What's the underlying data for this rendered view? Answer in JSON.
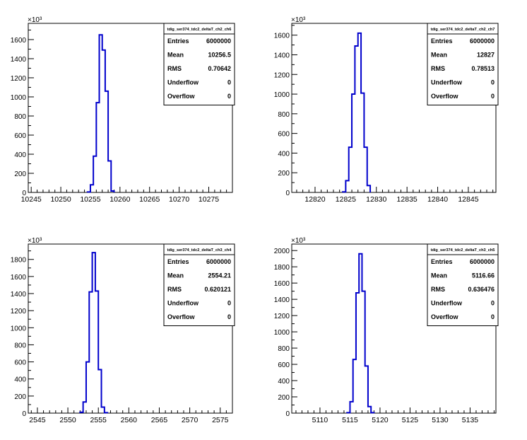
{
  "chart_data": [
    {
      "type": "bar",
      "histogram": true,
      "title": "tdig_ser374_tdc2_deltaT_ch2_ch6",
      "y_exponent_label": "×10³",
      "xlim": [
        10244.5,
        10279
      ],
      "ylim": [
        0,
        1770
      ],
      "xticks": [
        10245,
        10250,
        10255,
        10260,
        10265,
        10270,
        10275
      ],
      "yticks": [
        0,
        200,
        400,
        600,
        800,
        1000,
        1200,
        1400,
        1600
      ],
      "bin_width": 0.5,
      "bins": [
        10254.5,
        10255,
        10255.5,
        10256,
        10256.5,
        10257,
        10257.5,
        10258,
        10258.5
      ],
      "values": [
        5,
        80,
        380,
        940,
        1650,
        1490,
        1060,
        330,
        15
      ],
      "color": "#0000cc",
      "stats": [
        {
          "label": "Entries",
          "value": "6000000"
        },
        {
          "label": "Mean",
          "value": "10256.5"
        },
        {
          "label": "RMS",
          "value": "0.70642"
        },
        {
          "label": "Underflow",
          "value": "0"
        },
        {
          "label": "Overflow",
          "value": "0"
        }
      ]
    },
    {
      "type": "bar",
      "histogram": true,
      "title": "tdig_ser374_tdc2_deltaT_ch2_ch7",
      "y_exponent_label": "×10³",
      "xlim": [
        12816.2,
        12849.5
      ],
      "ylim": [
        0,
        1720
      ],
      "xticks": [
        12820,
        12825,
        12830,
        12835,
        12840,
        12845
      ],
      "yticks": [
        0,
        200,
        400,
        600,
        800,
        1000,
        1200,
        1400,
        1600
      ],
      "bin_width": 0.5,
      "bins": [
        12824.5,
        12825,
        12825.5,
        12826,
        12826.5,
        12827,
        12827.5,
        12828,
        12828.5
      ],
      "values": [
        5,
        120,
        460,
        1000,
        1490,
        1620,
        1010,
        460,
        70
      ],
      "color": "#0000cc",
      "stats": [
        {
          "label": "Entries",
          "value": "6000000"
        },
        {
          "label": "Mean",
          "value": "12827"
        },
        {
          "label": "RMS",
          "value": "0.78513"
        },
        {
          "label": "Underflow",
          "value": "0"
        },
        {
          "label": "Overflow",
          "value": "0"
        }
      ]
    },
    {
      "type": "bar",
      "histogram": true,
      "title": "tdig_ser374_tdc2_deltaT_ch3_ch4",
      "y_exponent_label": "×10³",
      "xlim": [
        2543.5,
        2577
      ],
      "ylim": [
        0,
        1980
      ],
      "xticks": [
        2545,
        2550,
        2555,
        2560,
        2565,
        2570,
        2575
      ],
      "yticks": [
        0,
        200,
        400,
        600,
        800,
        1000,
        1200,
        1400,
        1600,
        1800
      ],
      "bin_width": 0.5,
      "bins": [
        2552,
        2552.5,
        2553,
        2553.5,
        2554,
        2554.5,
        2555,
        2555.5,
        2556
      ],
      "values": [
        10,
        130,
        600,
        1420,
        1880,
        1430,
        510,
        70,
        5
      ],
      "color": "#0000cc",
      "stats": [
        {
          "label": "Entries",
          "value": "6000000"
        },
        {
          "label": "Mean",
          "value": "2554.21"
        },
        {
          "label": "RMS",
          "value": "0.620121"
        },
        {
          "label": "Underflow",
          "value": "0"
        },
        {
          "label": "Overflow",
          "value": "0"
        }
      ]
    },
    {
      "type": "bar",
      "histogram": true,
      "title": "tdig_ser374_tdc2_deltaT_ch3_ch5",
      "y_exponent_label": "×10³",
      "xlim": [
        5105.3,
        5139.3
      ],
      "ylim": [
        0,
        2080
      ],
      "xticks": [
        5110,
        5115,
        5120,
        5125,
        5130,
        5135
      ],
      "yticks": [
        0,
        200,
        400,
        600,
        800,
        1000,
        1200,
        1400,
        1600,
        1800,
        2000
      ],
      "bin_width": 0.5,
      "bins": [
        5114.5,
        5115,
        5115.5,
        5116,
        5116.5,
        5117,
        5117.5,
        5118,
        5118.5
      ],
      "values": [
        5,
        140,
        660,
        1480,
        1960,
        1500,
        580,
        80,
        5
      ],
      "color": "#0000cc",
      "stats": [
        {
          "label": "Entries",
          "value": "6000000"
        },
        {
          "label": "Mean",
          "value": "5116.66"
        },
        {
          "label": "RMS",
          "value": "0.636476"
        },
        {
          "label": "Underflow",
          "value": "0"
        },
        {
          "label": "Overflow",
          "value": "0"
        }
      ]
    }
  ]
}
